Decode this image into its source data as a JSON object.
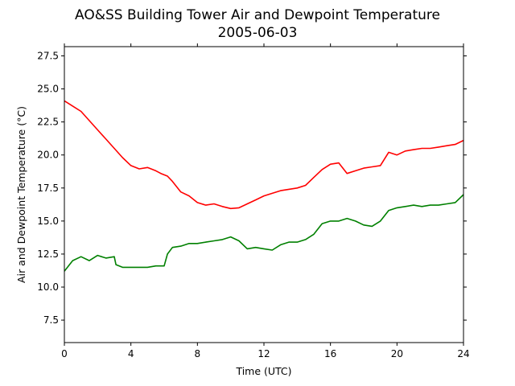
{
  "chart_data": {
    "type": "line",
    "title": "AO&SS Building Tower Air and Dewpoint Temperature",
    "subtitle": "2005-06-03",
    "xlabel": "Time (UTC)",
    "ylabel": "Air and Dewpoint Temperature (°C)",
    "xlim": [
      0,
      24
    ],
    "ylim": [
      5.8,
      28.2
    ],
    "xticks": [
      0,
      4,
      8,
      12,
      16,
      20,
      24
    ],
    "xtick_labels": [
      "0",
      "4",
      "8",
      "12",
      "16",
      "20",
      "24"
    ],
    "yticks": [
      7.5,
      10.0,
      12.5,
      15.0,
      17.5,
      20.0,
      22.5,
      25.0,
      27.5
    ],
    "ytick_labels": [
      "7.5",
      "10.0",
      "12.5",
      "15.0",
      "17.5",
      "20.0",
      "22.5",
      "25.0",
      "27.5"
    ],
    "grid": false,
    "series": [
      {
        "color": "#ff0000",
        "x": [
          0,
          0.5,
          1.0,
          1.5,
          2.0,
          2.5,
          3.0,
          3.5,
          4.0,
          4.5,
          5.0,
          5.5,
          5.8,
          6.2,
          6.5,
          7.0,
          7.5,
          8.0,
          8.5,
          9.0,
          9.5,
          10.0,
          10.5,
          11.0,
          11.5,
          12.0,
          12.5,
          13.0,
          13.5,
          14.0,
          14.5,
          15.0,
          15.5,
          16.0,
          16.5,
          17.0,
          17.5,
          18.0,
          18.5,
          19.0,
          19.5,
          20.0,
          20.5,
          21.0,
          21.5,
          22.0,
          22.5,
          23.0,
          23.5,
          24.0
        ],
        "values": [
          24.1,
          23.7,
          23.3,
          22.6,
          21.9,
          21.2,
          20.5,
          19.8,
          19.2,
          18.95,
          19.05,
          18.8,
          18.6,
          18.4,
          18.0,
          17.2,
          16.9,
          16.4,
          16.2,
          16.3,
          16.1,
          15.95,
          16.0,
          16.3,
          16.6,
          16.9,
          17.1,
          17.3,
          17.4,
          17.5,
          17.7,
          18.3,
          18.9,
          19.3,
          19.4,
          18.6,
          18.8,
          19.0,
          19.1,
          19.2,
          20.2,
          20.0,
          20.3,
          20.4,
          20.5,
          20.5,
          20.6,
          20.7,
          20.8,
          21.1
        ]
      },
      {
        "color": "#008000",
        "x": [
          0,
          0.5,
          1.0,
          1.5,
          2.0,
          2.5,
          3.0,
          3.1,
          3.5,
          4.0,
          4.5,
          5.0,
          5.5,
          6.0,
          6.2,
          6.5,
          7.0,
          7.5,
          8.0,
          8.5,
          9.0,
          9.5,
          10.0,
          10.5,
          11.0,
          11.5,
          12.0,
          12.5,
          13.0,
          13.5,
          14.0,
          14.5,
          15.0,
          15.5,
          16.0,
          16.5,
          17.0,
          17.5,
          18.0,
          18.5,
          19.0,
          19.5,
          20.0,
          20.5,
          21.0,
          21.5,
          22.0,
          22.5,
          23.0,
          23.5,
          24.0
        ],
        "values": [
          11.2,
          12.0,
          12.3,
          12.0,
          12.4,
          12.2,
          12.3,
          11.7,
          11.5,
          11.5,
          11.5,
          11.5,
          11.6,
          11.6,
          12.5,
          13.0,
          13.1,
          13.3,
          13.3,
          13.4,
          13.5,
          13.6,
          13.8,
          13.5,
          12.9,
          13.0,
          12.9,
          12.8,
          13.2,
          13.4,
          13.4,
          13.6,
          14.0,
          14.8,
          15.0,
          15.0,
          15.2,
          15.0,
          14.7,
          14.6,
          15.0,
          15.8,
          16.0,
          16.1,
          16.2,
          16.1,
          16.2,
          16.2,
          16.3,
          16.4,
          17.0
        ]
      }
    ]
  }
}
